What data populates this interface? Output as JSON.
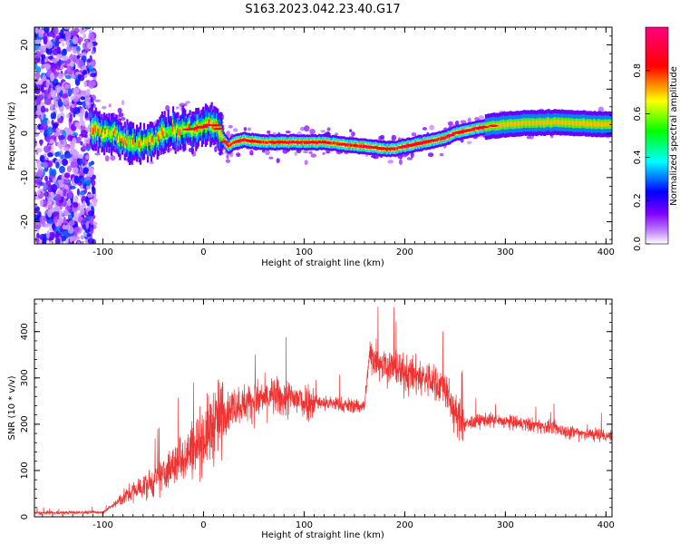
{
  "title": "S163.2023.042.23.40.G17",
  "chart_data": [
    {
      "type": "heatmap",
      "xlabel": "Height of straight line (km)",
      "ylabel": "Frequency (Hz)",
      "xlim": [
        -168,
        406
      ],
      "ylim": [
        -25,
        24
      ],
      "xticks": [
        -100,
        0,
        100,
        200,
        300,
        400
      ],
      "yticks": [
        -20,
        -10,
        0,
        10,
        20
      ],
      "colorbar": {
        "label": "Normalized spectral amplitude",
        "range": [
          0,
          1
        ],
        "ticks": [
          0.0,
          0.2,
          0.4,
          0.6,
          0.8
        ],
        "colors": [
          "#ffffff",
          "#8000ff",
          "#0000ff",
          "#00ffff",
          "#00ff00",
          "#ffff00",
          "#ff0000",
          "#ff00ff"
        ]
      },
      "ridge": {
        "x": [
          -110,
          -100,
          -90,
          -80,
          -70,
          -60,
          -50,
          -40,
          -30,
          -20,
          -10,
          0,
          10,
          15,
          20,
          25,
          30,
          40,
          50,
          60,
          80,
          100,
          120,
          140,
          160,
          170,
          180,
          190,
          200,
          210,
          220,
          230,
          240,
          250,
          260,
          280,
          300,
          320,
          350,
          380,
          406
        ],
        "y": [
          1.0,
          0.5,
          0.0,
          -1.5,
          -2.5,
          -2.0,
          -1.0,
          0.0,
          0.5,
          0.8,
          1.0,
          1.5,
          2.5,
          1.0,
          -1.5,
          -3.0,
          -2.0,
          -1.5,
          -1.8,
          -2.0,
          -2.0,
          -2.0,
          -2.0,
          -2.5,
          -3.0,
          -3.2,
          -3.5,
          -3.5,
          -3.0,
          -2.5,
          -2.0,
          -1.5,
          -1.0,
          0.0,
          0.5,
          1.5,
          2.0,
          2.3,
          2.5,
          2.2,
          2.0
        ]
      }
    },
    {
      "type": "line",
      "xlabel": "Height of straight line (km)",
      "ylabel": "SNR (10 * v/v)",
      "xlim": [
        -168,
        406
      ],
      "ylim": [
        0,
        470
      ],
      "xticks": [
        -100,
        0,
        100,
        200,
        300,
        400
      ],
      "yticks": [
        0,
        100,
        200,
        300,
        400
      ],
      "color": "#ee3333",
      "envelope": {
        "x": [
          -168,
          -100,
          -90,
          -80,
          -70,
          -60,
          -50,
          -40,
          -30,
          -20,
          -10,
          0,
          10,
          20,
          30,
          40,
          50,
          60,
          70,
          80,
          90,
          100,
          110,
          120,
          130,
          140,
          150,
          160,
          165,
          170,
          180,
          190,
          200,
          210,
          220,
          230,
          240,
          250,
          260,
          270,
          280,
          300,
          320,
          340,
          360,
          380,
          406
        ],
        "y": [
          8,
          10,
          25,
          40,
          55,
          65,
          75,
          90,
          110,
          130,
          150,
          170,
          200,
          220,
          240,
          245,
          250,
          255,
          260,
          255,
          255,
          250,
          250,
          245,
          245,
          240,
          240,
          240,
          350,
          345,
          330,
          320,
          310,
          305,
          300,
          290,
          280,
          220,
          200,
          205,
          210,
          205,
          200,
          195,
          185,
          180,
          175
        ]
      }
    }
  ]
}
